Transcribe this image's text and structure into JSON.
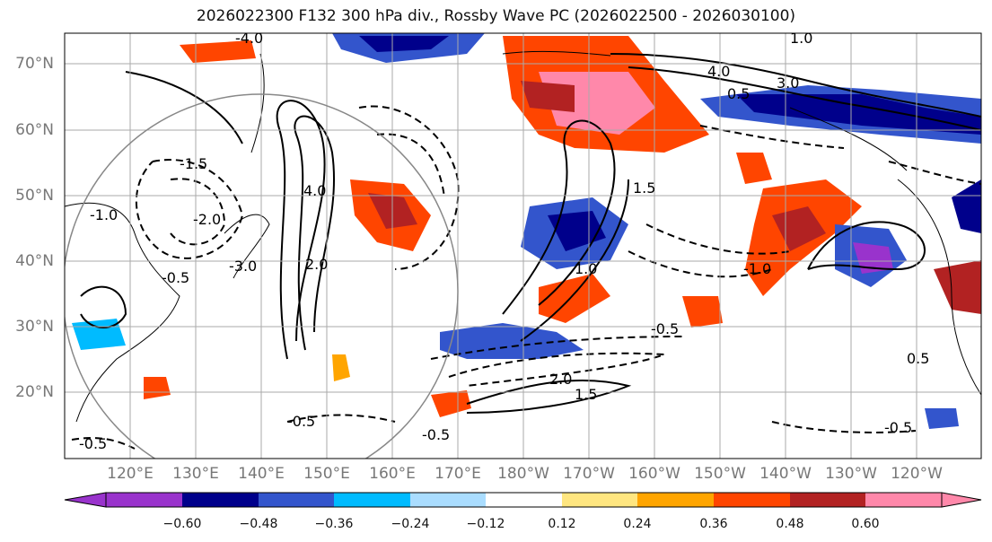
{
  "title": "2026022300 F132 300 hPa div., Rossby Wave PC (2026022500 - 2026030100)",
  "lat_labels": [
    "70°N",
    "60°N",
    "50°N",
    "40°N",
    "30°N",
    "20°N"
  ],
  "lon_labels": [
    "120°E",
    "130°E",
    "140°E",
    "150°E",
    "160°E",
    "170°E",
    "180°W",
    "170°W",
    "160°W",
    "150°W",
    "140°W",
    "130°W",
    "120°W"
  ],
  "colorbar": {
    "ticks": [
      "−0.60",
      "−0.48",
      "−0.36",
      "−0.24",
      "−0.12",
      "0.12",
      "0.24",
      "0.36",
      "0.48",
      "0.60"
    ],
    "colors": [
      "#9933cc",
      "#00008b",
      "#3355cc",
      "#00bbff",
      "#aaddff",
      "#ffffff",
      "#ffe680",
      "#ffa500",
      "#ff4500",
      "#b22222",
      "#ff88aa"
    ]
  },
  "contour_labels": [
    "-4.0",
    "4.0",
    "-1.5",
    "-0.5",
    "-1.0",
    "1.0",
    "2.0",
    "-2.0",
    "3.0",
    "-3.0",
    "0.5",
    "1.5",
    "-0.5",
    "0.5",
    "-1.0",
    "4.0",
    "1.0",
    "1.5",
    "2.0",
    "-0.5",
    "-0.5",
    "-0.5",
    "-0.5"
  ]
}
